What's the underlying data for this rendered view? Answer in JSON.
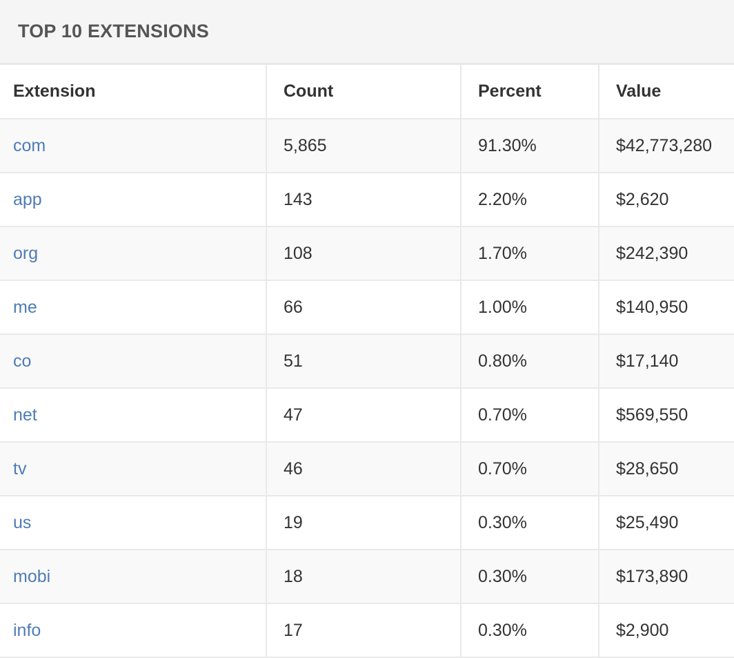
{
  "panel": {
    "title": "TOP 10 EXTENSIONS"
  },
  "table": {
    "headers": {
      "extension": "Extension",
      "count": "Count",
      "percent": "Percent",
      "value": "Value"
    },
    "rows": [
      {
        "extension": "com",
        "count": "5,865",
        "percent": "91.30%",
        "value": "$42,773,280"
      },
      {
        "extension": "app",
        "count": "143",
        "percent": "2.20%",
        "value": "$2,620"
      },
      {
        "extension": "org",
        "count": "108",
        "percent": "1.70%",
        "value": "$242,390"
      },
      {
        "extension": "me",
        "count": "66",
        "percent": "1.00%",
        "value": "$140,950"
      },
      {
        "extension": "co",
        "count": "51",
        "percent": "0.80%",
        "value": "$17,140"
      },
      {
        "extension": "net",
        "count": "47",
        "percent": "0.70%",
        "value": "$569,550"
      },
      {
        "extension": "tv",
        "count": "46",
        "percent": "0.70%",
        "value": "$28,650"
      },
      {
        "extension": "us",
        "count": "19",
        "percent": "0.30%",
        "value": "$25,490"
      },
      {
        "extension": "mobi",
        "count": "18",
        "percent": "0.30%",
        "value": "$173,890"
      },
      {
        "extension": "info",
        "count": "17",
        "percent": "0.30%",
        "value": "$2,900"
      }
    ]
  },
  "colors": {
    "link": "#4f7cb5",
    "heading_bg": "#f5f5f5",
    "stripe_bg": "#f9f9f9",
    "border": "#e9e9e9"
  }
}
